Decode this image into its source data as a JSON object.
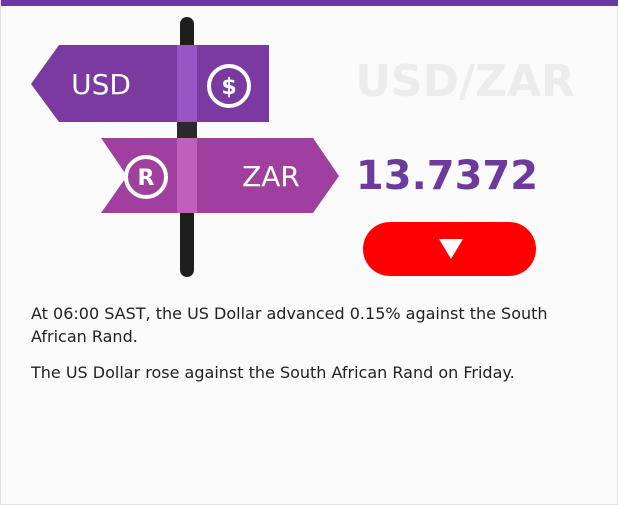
{
  "widget": {
    "base_currency": "USD",
    "base_symbol": "$",
    "quote_currency": "ZAR",
    "quote_symbol": "R",
    "pair": "USD/ZAR",
    "rate": "13.7372",
    "paragraphs": [
      "At 06:00 SAST, the US Dollar advanced 0.15% against the South African Rand.",
      "The US Dollar rose against the South African Rand on Friday."
    ]
  }
}
